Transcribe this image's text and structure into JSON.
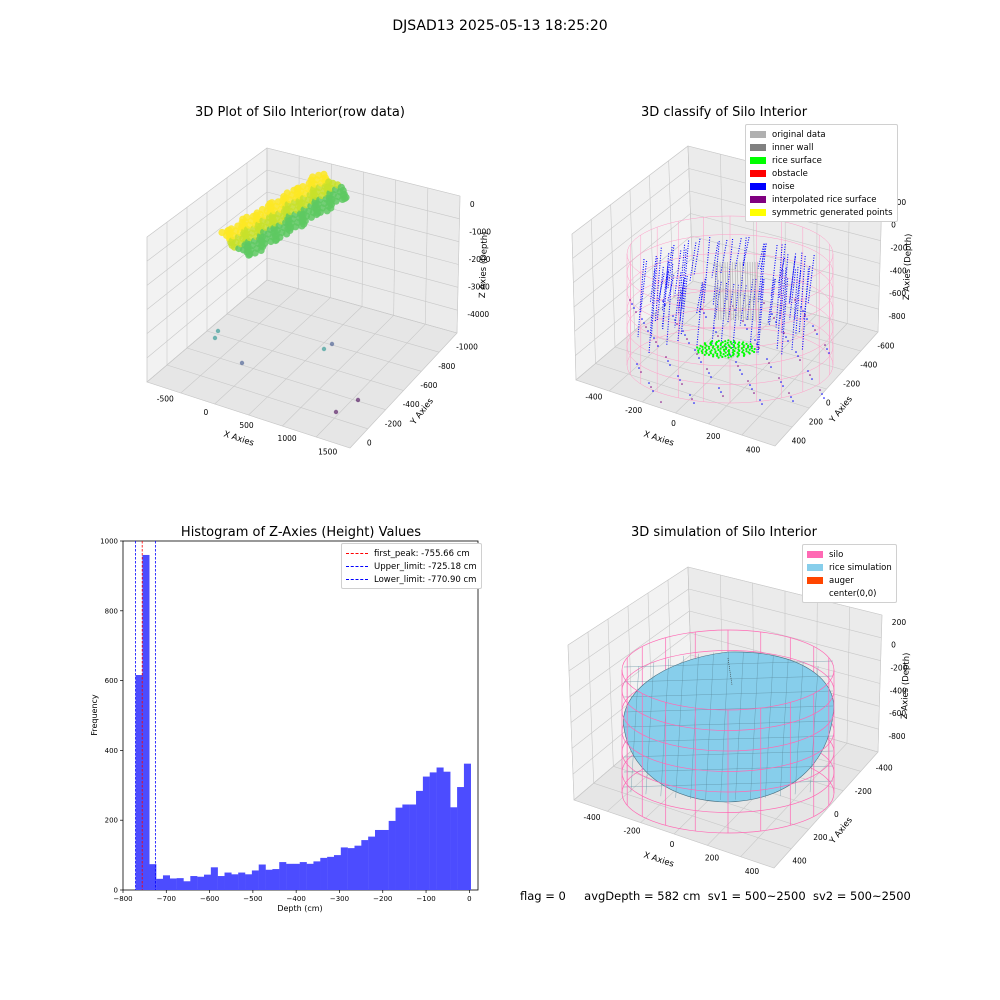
{
  "figure": {
    "suptitle": "DJSAD13 2025-05-13 18:25:20"
  },
  "footer": {
    "flag": "flag = 0",
    "avg_depth": "avgDepth = 582 cm",
    "sv1": "sv1 = 500~2500",
    "sv2": "sv2 = 500~2500"
  },
  "chart_data": [
    {
      "type": "scatter3d",
      "title": "3D Plot of Silo Interior(row data)",
      "xlabel": "X Axies",
      "ylabel": "Y Axies",
      "zlabel": "Z Axies (Depth)",
      "xticks": [
        "-500",
        "0",
        "500",
        "1000",
        "1500"
      ],
      "yticks": [
        "0",
        "-200",
        "-400",
        "-600",
        "-800",
        "-1000"
      ],
      "zticks": [
        "0",
        "-1000",
        "-2000",
        "-3000",
        "-4000"
      ],
      "colormap": [
        "#440154",
        "#3b528b",
        "#21918c",
        "#5ec962",
        "#fde725"
      ]
    },
    {
      "type": "scatter3d",
      "title": "3D classify of Silo Interior",
      "xlabel": "X Axies",
      "ylabel": "Y Axies",
      "zlabel": "Z Axies (Depth)",
      "xticks": [
        "-400",
        "-200",
        "0",
        "200",
        "400"
      ],
      "yticks": [
        "400",
        "200",
        "0",
        "-200",
        "-400",
        "-600"
      ],
      "zticks": [
        "200",
        "0",
        "-200",
        "-400",
        "-600",
        "-800"
      ],
      "legend_placement": "top-right",
      "legend": [
        {
          "label": "original data",
          "color": "#b0b0b0"
        },
        {
          "label": "inner wall",
          "color": "#808080"
        },
        {
          "label": "rice surface",
          "color": "#00ff00"
        },
        {
          "label": "obstacle",
          "color": "#ff0000"
        },
        {
          "label": "noise",
          "color": "#0000ff"
        },
        {
          "label": "interpolated rice surface",
          "color": "#800080"
        },
        {
          "label": "symmetric generated points",
          "color": "#ffff00"
        }
      ]
    },
    {
      "type": "bar",
      "title": "Histogram of Z-Axies (Height) Values",
      "xlabel": "Depth (cm)",
      "ylabel": "Frequency",
      "xlim": [
        -800,
        20
      ],
      "ylim": [
        0,
        1000
      ],
      "xticks": [
        -800,
        -700,
        -600,
        -500,
        -400,
        -300,
        -200,
        -100,
        0
      ],
      "yticks": [
        0,
        200,
        400,
        600,
        800,
        1000
      ],
      "bar_color": "#4c4cff",
      "bin_width": 15.8,
      "bins_start": [
        -770.9,
        -755.1,
        -739.3,
        -723.5,
        -707.7,
        -691.9,
        -676.1,
        -660.3,
        -644.5,
        -628.7,
        -612.9,
        -597.1,
        -581.3,
        -565.5,
        -549.7,
        -533.9,
        -518.1,
        -502.3,
        -486.5,
        -470.7,
        -454.9,
        -439.1,
        -423.3,
        -407.5,
        -391.7,
        -375.9,
        -360.1,
        -344.3,
        -328.5,
        -312.7,
        -296.9,
        -281.1,
        -265.3,
        -249.5,
        -233.7,
        -217.9,
        -202.1,
        -186.3,
        -170.5,
        -154.7,
        -138.9,
        -123.1,
        -107.3,
        -91.5,
        -75.7,
        -59.9,
        -44.1,
        -28.3
      ],
      "values": [
        616,
        960,
        74,
        32,
        42,
        33,
        34,
        25,
        40,
        38,
        44,
        65,
        40,
        50,
        45,
        50,
        45,
        56,
        73,
        58,
        60,
        80,
        75,
        75,
        80,
        75,
        82,
        92,
        95,
        100,
        122,
        120,
        127,
        143,
        153,
        172,
        172,
        198,
        236,
        245,
        245,
        284,
        325,
        337,
        351,
        339,
        237,
        295
      ],
      "last_value": 362,
      "lines": [
        {
          "label": "first_peak: -755.66 cm",
          "x": -755.66,
          "color": "#ff0000"
        },
        {
          "label": "Upper_limit: -725.18 cm",
          "x": -725.18,
          "color": "#0000ff"
        },
        {
          "label": "Lower_limit: -770.90 cm",
          "x": -770.9,
          "color": "#0000ff"
        }
      ],
      "legend_placement": "top-right"
    },
    {
      "type": "surface3d",
      "title": "3D simulation of Silo Interior",
      "xlabel": "X Axies",
      "ylabel": "Y Axies",
      "zlabel": "Z Axies (Depth)",
      "xticks": [
        "-400",
        "-200",
        "0",
        "200",
        "400"
      ],
      "yticks": [
        "400",
        "200",
        "0",
        "-200",
        "-400"
      ],
      "zticks": [
        "200",
        "0",
        "-200",
        "-400",
        "-600",
        "-800"
      ],
      "legend_placement": "top-right",
      "legend": [
        {
          "label": "silo",
          "color": "#ff69b4"
        },
        {
          "label": "rice simulation",
          "color": "#87ceeb"
        },
        {
          "label": "auger",
          "color": "#ff4500"
        },
        {
          "label": "center(0,0)",
          "color": "#ffffff"
        }
      ]
    }
  ]
}
